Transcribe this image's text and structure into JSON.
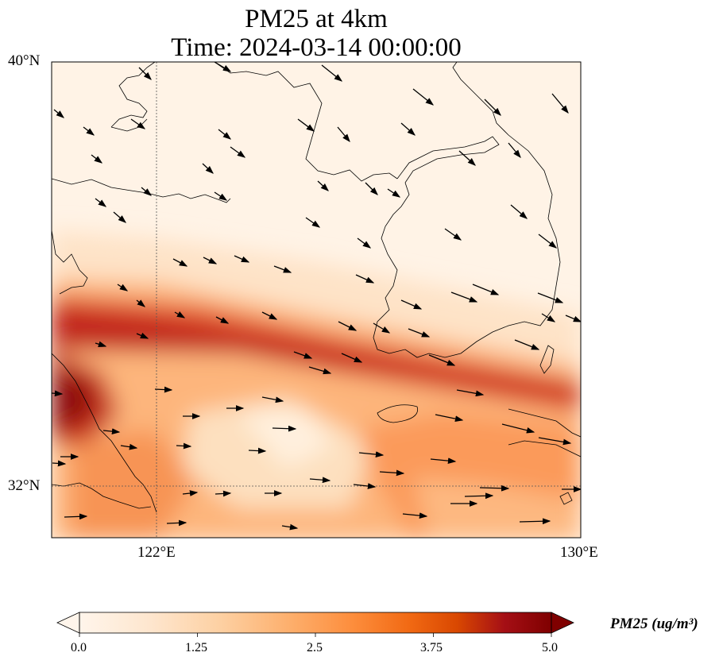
{
  "title": {
    "line1": "PM25 at 4km",
    "line2": "Time: 2024-03-14 00:00:00"
  },
  "axes": {
    "lat_labels": [
      "40°N",
      "32°N"
    ],
    "lon_labels": [
      "122°E",
      "130°E"
    ]
  },
  "colorbar": {
    "label": "PM25 (ug/m³)",
    "ticks": [
      "0.0",
      "1.25",
      "2.5",
      "3.75",
      "5.0"
    ],
    "colormap": [
      "#fff5eb",
      "#fee6ce",
      "#fdd0a2",
      "#fdae6b",
      "#fd8d3c",
      "#f16913",
      "#d94801",
      "#a50f15",
      "#7f0000"
    ],
    "range": [
      0,
      5
    ],
    "extend": "both"
  },
  "map": {
    "lon_range": [
      120,
      130
    ],
    "lat_range": [
      31,
      40
    ],
    "gridlines": {
      "lon": 122,
      "lat": 32
    }
  }
}
